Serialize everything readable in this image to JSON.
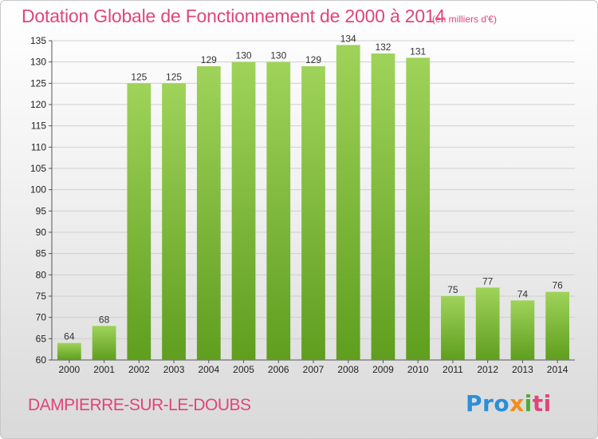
{
  "header": {
    "title": "Dotation Globale de Fonctionnement de 2000 à 2014",
    "unit": "(en milliers d'€)"
  },
  "footer": {
    "commune": "DAMPIERRE-SUR-LE-DOUBS",
    "logo": {
      "p1": "Pro",
      "p2": "x",
      "p3": "i",
      "p4": "ti"
    }
  },
  "colors": {
    "title": "#e0457a",
    "bar_light": "#9fd35a",
    "bar_dark": "#5f9e1e",
    "grid": "#cfcfcf"
  },
  "chart_data": {
    "type": "bar",
    "categories": [
      "2000",
      "2001",
      "2002",
      "2003",
      "2004",
      "2005",
      "2006",
      "2007",
      "2008",
      "2009",
      "2010",
      "2011",
      "2012",
      "2013",
      "2014"
    ],
    "values": [
      64,
      68,
      125,
      125,
      129,
      130,
      130,
      129,
      134,
      132,
      131,
      75,
      77,
      74,
      76
    ],
    "ylim": [
      60,
      135
    ],
    "yticks": [
      60,
      65,
      70,
      75,
      80,
      85,
      90,
      95,
      100,
      105,
      110,
      115,
      120,
      125,
      130,
      135
    ],
    "grid": true,
    "legend": "none"
  }
}
